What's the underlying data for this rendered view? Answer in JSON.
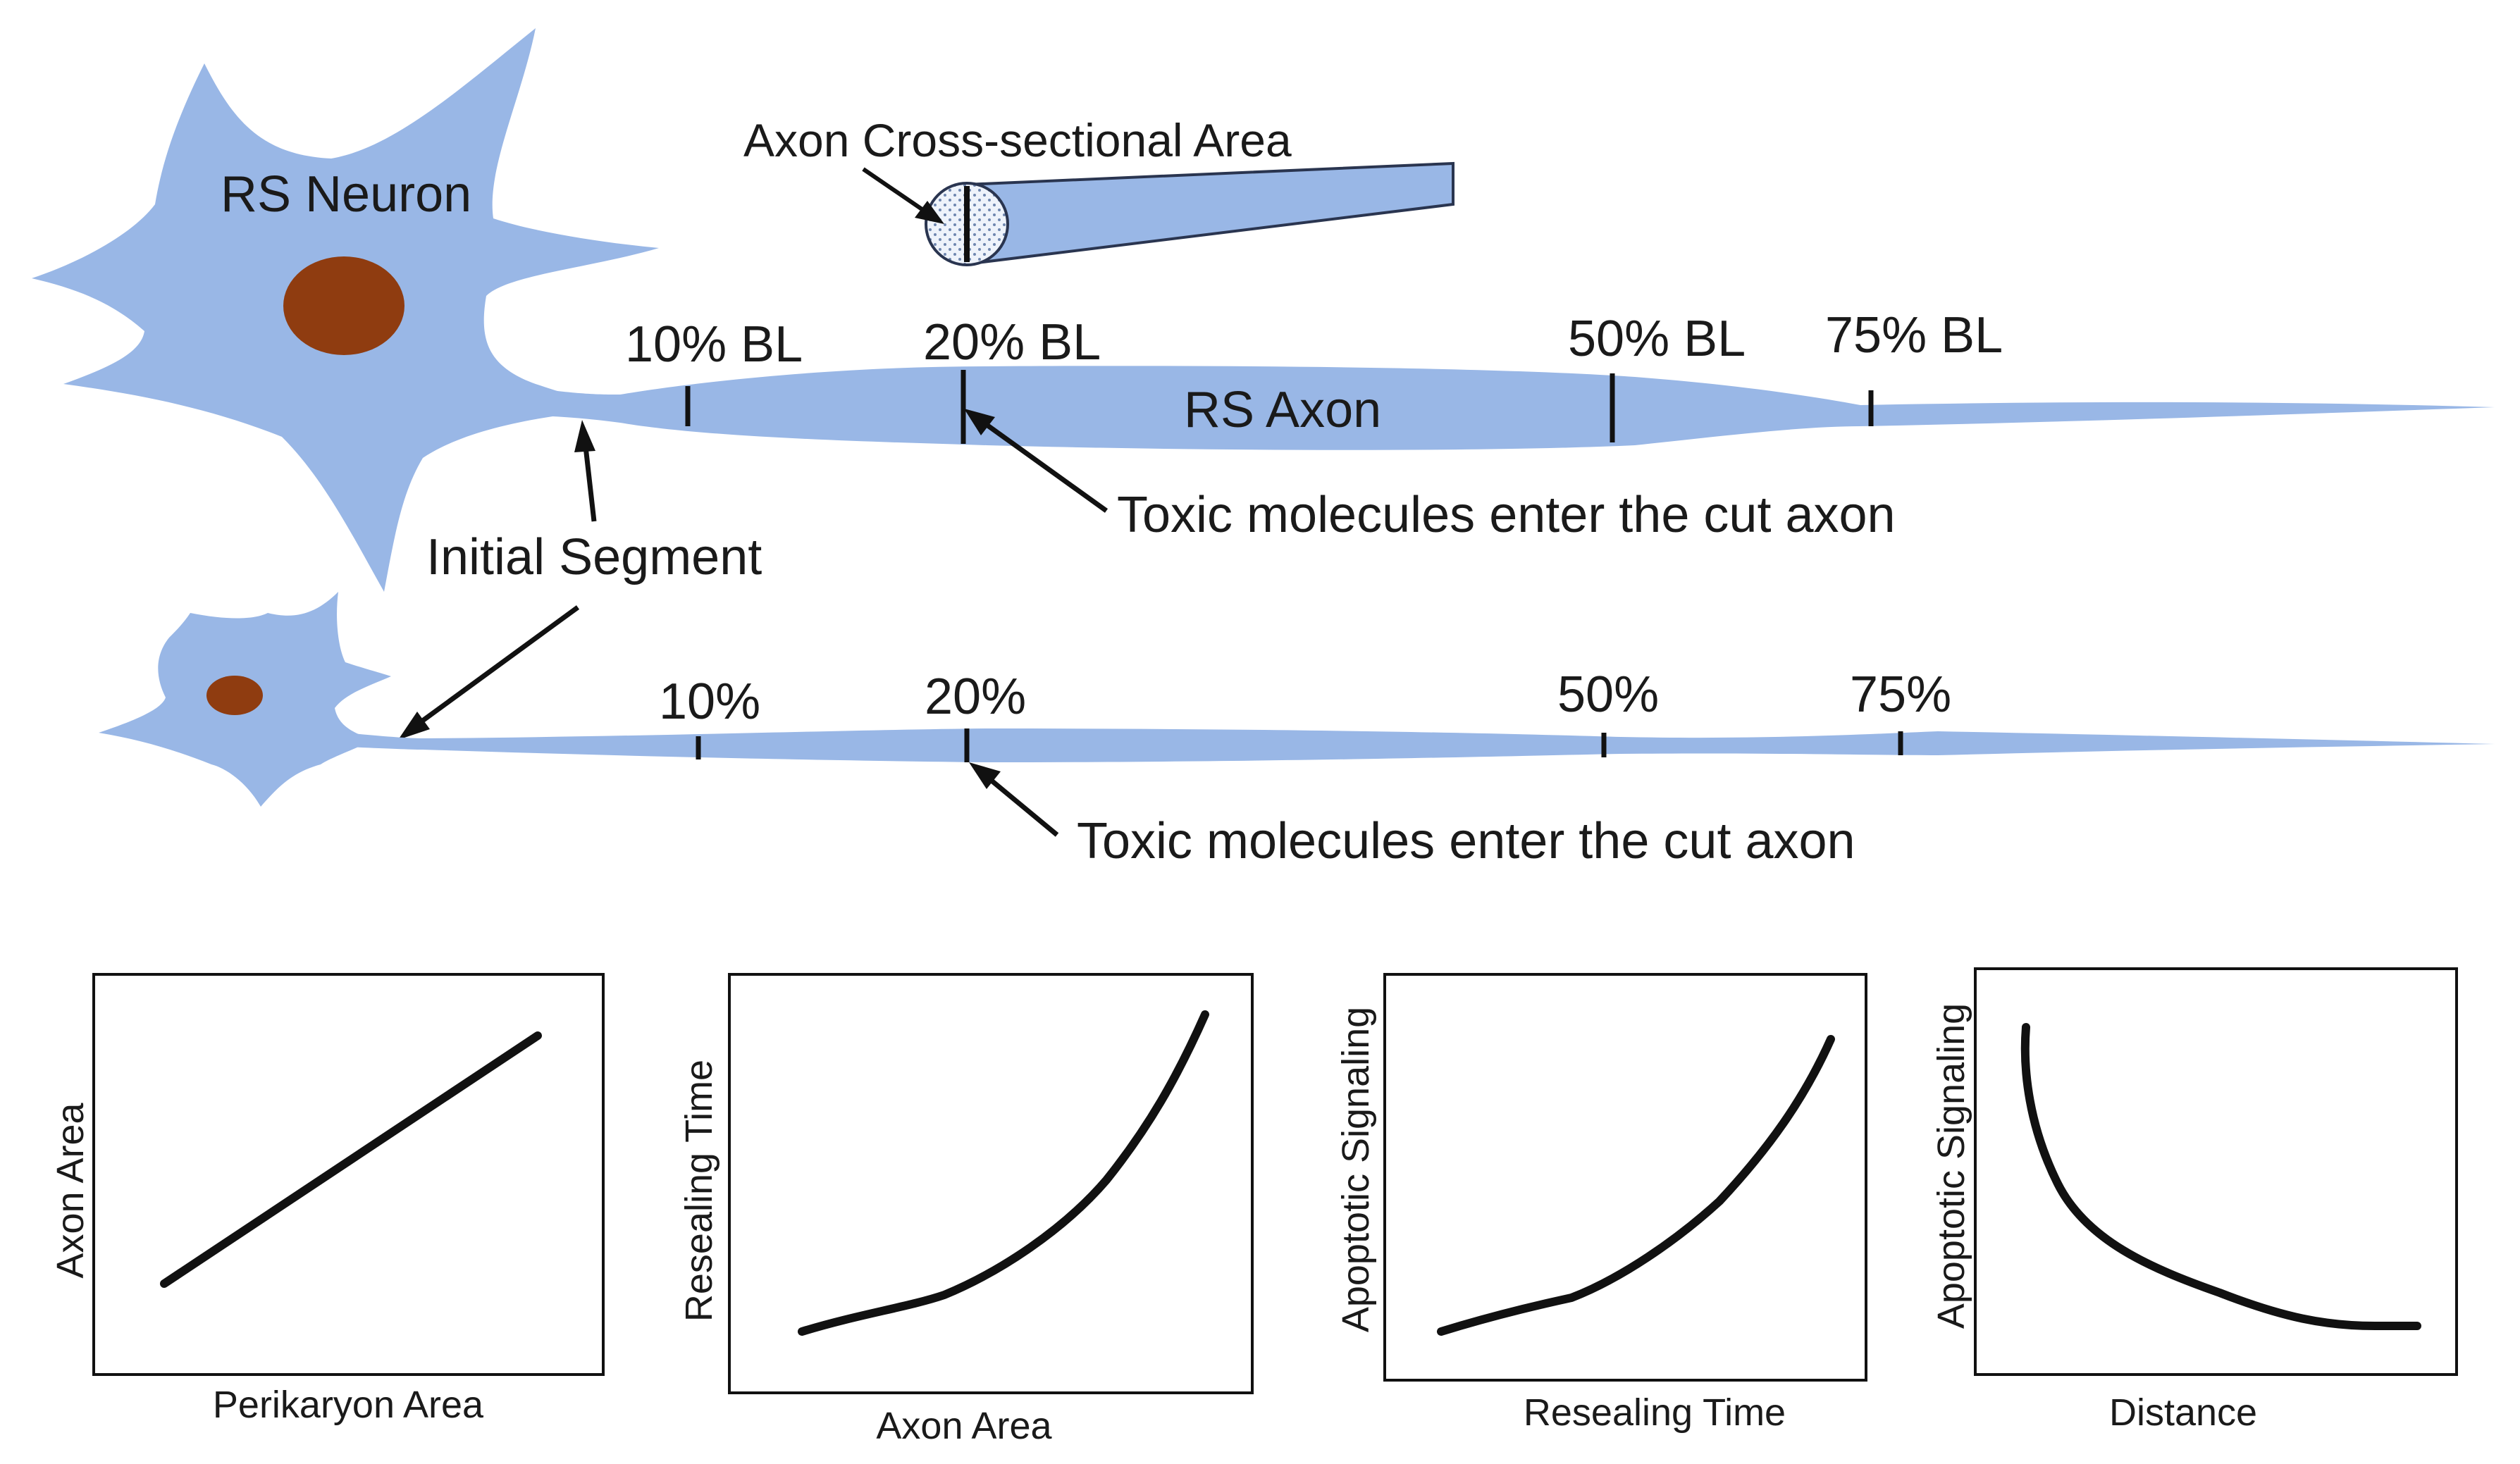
{
  "colors": {
    "cell": "#99b7e6",
    "nucleus": "#8f3c10",
    "line": "#111111",
    "background": "#ffffff"
  },
  "top_diagram": {
    "neuron_label": "RS Neuron",
    "axon_label": "RS Axon",
    "cross_section_label": "Axon Cross-sectional Area",
    "markers": [
      "10% BL",
      "20% BL",
      "50% BL",
      "75% BL"
    ],
    "toxic_label": "Toxic molecules enter the cut axon",
    "initial_segment_label": "Initial Segment"
  },
  "bottom_diagram": {
    "markers": [
      "10%",
      "20%",
      "50%",
      "75%"
    ],
    "toxic_label": "Toxic molecules enter the cut axon"
  },
  "graphs": [
    {
      "xlabel": "Perikaryon Area",
      "ylabel": "Axon Area"
    },
    {
      "xlabel": "Axon Area",
      "ylabel": "Resealing Time"
    },
    {
      "xlabel": "Resealing Time",
      "ylabel": "Apoptotic Signaling"
    },
    {
      "xlabel": "Distance",
      "ylabel": "Apoptotic Signaling"
    }
  ]
}
